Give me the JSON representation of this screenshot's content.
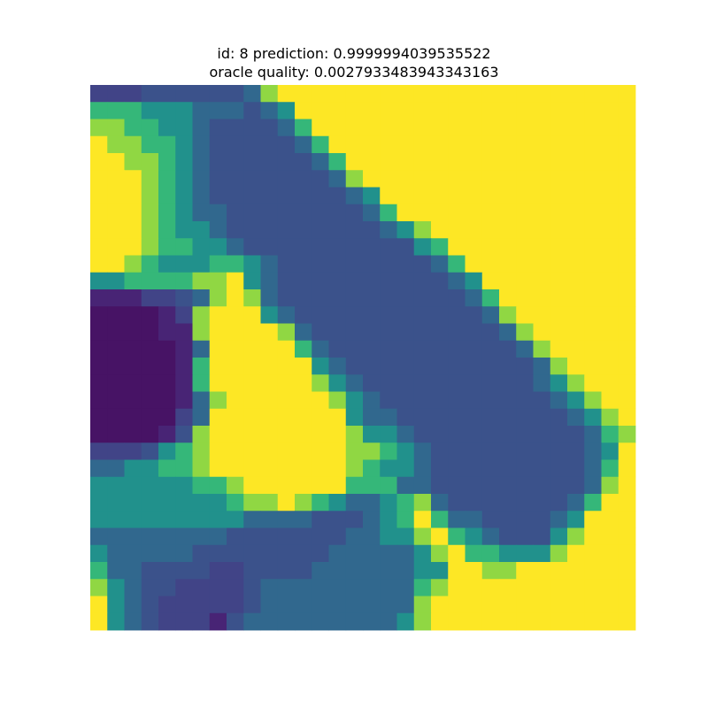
{
  "chart_data": {
    "type": "heatmap",
    "title_line1": "id: 8 prediction: 0.9999994039535522",
    "title_line2": "oracle quality: 0.0027933483943343163",
    "colormap": "viridis",
    "axes_visible": false,
    "value_range": [
      0,
      9
    ],
    "rows": 32,
    "cols": 32,
    "z_rows": [
      "33344444458999999999999999999999",
      "77766655545699999999999999999999",
      "88776654444579999999999999999999",
      "98877654444457999999999999999999",
      "99887654444445799999999999999999",
      "99987654444444589999999999999999",
      "99987654444444456999999999999999",
      "99987655444444445799999999999999",
      "99987665444444444568999999999999",
      "99987766544444444446799999999999",
      "99876667765444444444579999999999",
      "66777788965444444444456999999999",
      "22233458985444444444445799999999",
      "11112389996544444444444589999999",
      "11112289999854444444444458999999",
      "11111259999975444444444445899999",
      "11111279999996544444444444589999",
      "11111279999998654444444444568999",
      "11111258999999865444444444456899",
      "11111359999999965544444444445689",
      "11112489999999986654444444444578",
      "33346789999999988765444444444569",
      "55667789999999987665444444444579",
      "66666677899999977755444444444589",
      "66666666788987655678544444445799",
      "66666666655554445679755444456999",
      "55555555444444455668976544468999",
      "65555544444444555556897766689999",
      "75544443344445555556699889999999",
      "86544333345555555557899999999999",
      "96543333345555555558999999999999",
      "96543332455555555568999999999999"
    ]
  }
}
